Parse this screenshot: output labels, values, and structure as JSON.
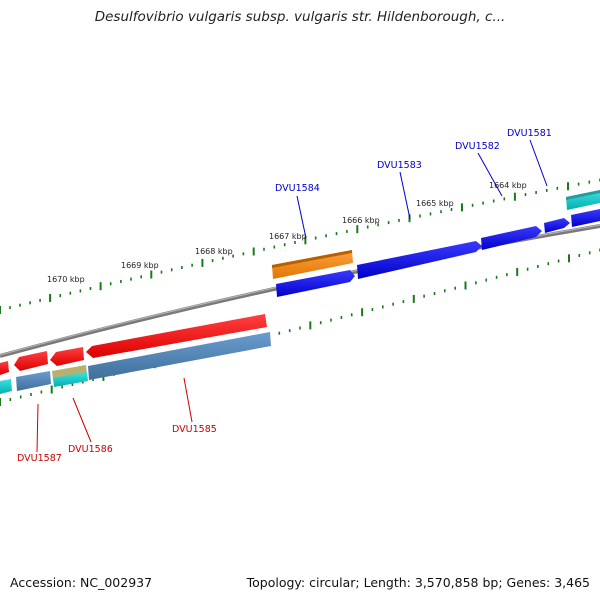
{
  "header": {
    "title": "Desulfovibrio vulgaris subsp. vulgaris str. Hildenborough, c..."
  },
  "footer": {
    "accession": "Accession: NC_002937",
    "summary": "Topology: circular; Length: 3,570,858 bp; Genes: 3,465"
  },
  "scale": {
    "tick_labels": [
      "1670 kbp",
      "1669 kbp",
      "1668 kbp",
      "1667 kbp",
      "1666 kbp",
      "1665 kbp",
      "1664 kbp"
    ]
  },
  "genes": {
    "forward": [
      "DVU1584",
      "DVU1583",
      "DVU1582",
      "DVU1581"
    ],
    "reverse": [
      "DVU1587",
      "DVU1586",
      "DVU1585"
    ]
  },
  "colors": {
    "forward_label": "#0000cc",
    "reverse_label": "#cc0000",
    "forward_cds": "#0000ee",
    "reverse_cds": "#ff0000",
    "gc_skew_forward": "#4682b4",
    "highlight": "#ff8c00",
    "cyan": "#00cccc",
    "backbone": "#808080",
    "ticks": "#1a7a1a"
  }
}
